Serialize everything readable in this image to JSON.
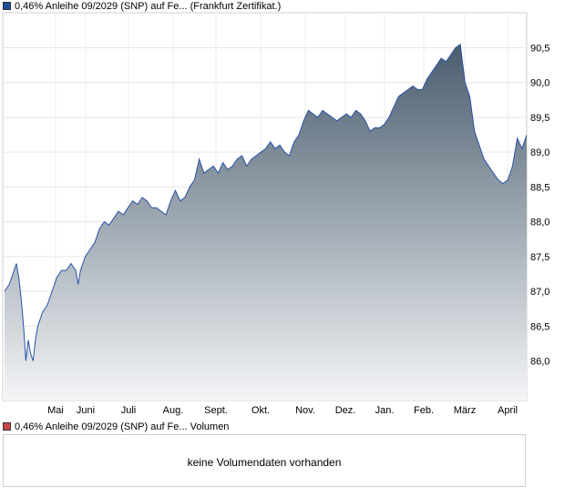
{
  "legend": {
    "price_label": "0,46% Anleihe 09/2029 (SNP) auf Fe... (Frankfurt Zertifikat.)",
    "price_color": "#1f4e9c",
    "volume_label": "0,46% Anleihe 09/2029 (SNP) auf Fe... Volumen",
    "volume_color": "#c8464a"
  },
  "volume_panel": {
    "message": "keine Volumendaten vorhanden"
  },
  "chart_data": {
    "type": "area",
    "title": "",
    "xlabel": "",
    "ylabel": "",
    "x_ticks": [
      "Mai",
      "Juni",
      "Juli",
      "Aug.",
      "Sept.",
      "Okt.",
      "Nov.",
      "Dez.",
      "Jan.",
      "Feb.",
      "März",
      "April"
    ],
    "y_ticks": [
      "86,0",
      "86,5",
      "87,0",
      "87,5",
      "88,0",
      "88,5",
      "89,0",
      "89,5",
      "90,0",
      "90,5"
    ],
    "ylim": [
      85.4,
      90.9
    ],
    "grid": true,
    "line_color": "#2a52a8",
    "fill_top_color": "#4a5d6e",
    "fill_bottom_color": "#f4f5f7",
    "series": [
      {
        "points": [
          [
            0,
            87.0
          ],
          [
            2,
            87.1
          ],
          [
            4,
            87.3
          ],
          [
            5,
            87.4
          ],
          [
            6,
            87.2
          ],
          [
            7,
            86.9
          ],
          [
            8,
            86.5
          ],
          [
            9,
            86.0
          ],
          [
            10,
            86.3
          ],
          [
            11,
            86.1
          ],
          [
            12,
            86.0
          ],
          [
            13,
            86.3
          ],
          [
            14,
            86.5
          ],
          [
            15,
            86.6
          ],
          [
            16,
            86.7
          ],
          [
            18,
            86.8
          ],
          [
            19,
            86.9
          ],
          [
            20,
            87.0
          ],
          [
            21,
            87.1
          ],
          [
            22,
            87.2
          ],
          [
            24,
            87.3
          ],
          [
            26,
            87.3
          ],
          [
            28,
            87.4
          ],
          [
            30,
            87.3
          ],
          [
            31,
            87.1
          ],
          [
            32,
            87.3
          ],
          [
            34,
            87.5
          ],
          [
            36,
            87.6
          ],
          [
            38,
            87.7
          ],
          [
            40,
            87.9
          ],
          [
            42,
            88.0
          ],
          [
            44,
            87.95
          ],
          [
            46,
            88.05
          ],
          [
            48,
            88.15
          ],
          [
            50,
            88.1
          ],
          [
            52,
            88.2
          ],
          [
            54,
            88.3
          ],
          [
            56,
            88.25
          ],
          [
            58,
            88.35
          ],
          [
            60,
            88.3
          ],
          [
            62,
            88.2
          ],
          [
            64,
            88.2
          ],
          [
            66,
            88.15
          ],
          [
            68,
            88.1
          ],
          [
            70,
            88.3
          ],
          [
            72,
            88.45
          ],
          [
            74,
            88.3
          ],
          [
            76,
            88.35
          ],
          [
            78,
            88.5
          ],
          [
            80,
            88.6
          ],
          [
            82,
            88.9
          ],
          [
            84,
            88.7
          ],
          [
            86,
            88.75
          ],
          [
            88,
            88.8
          ],
          [
            90,
            88.7
          ],
          [
            92,
            88.85
          ],
          [
            94,
            88.75
          ],
          [
            96,
            88.8
          ],
          [
            98,
            88.9
          ],
          [
            100,
            88.95
          ],
          [
            102,
            88.8
          ],
          [
            104,
            88.9
          ],
          [
            106,
            88.95
          ],
          [
            108,
            89.0
          ],
          [
            110,
            89.05
          ],
          [
            112,
            89.15
          ],
          [
            114,
            89.05
          ],
          [
            116,
            89.1
          ],
          [
            118,
            89.0
          ],
          [
            120,
            88.95
          ],
          [
            122,
            89.15
          ],
          [
            124,
            89.25
          ],
          [
            126,
            89.45
          ],
          [
            128,
            89.6
          ],
          [
            130,
            89.55
          ],
          [
            132,
            89.5
          ],
          [
            134,
            89.6
          ],
          [
            136,
            89.55
          ],
          [
            138,
            89.5
          ],
          [
            140,
            89.45
          ],
          [
            142,
            89.5
          ],
          [
            144,
            89.55
          ],
          [
            146,
            89.5
          ],
          [
            148,
            89.6
          ],
          [
            150,
            89.55
          ],
          [
            152,
            89.45
          ],
          [
            154,
            89.3
          ],
          [
            156,
            89.35
          ],
          [
            158,
            89.35
          ],
          [
            160,
            89.4
          ],
          [
            162,
            89.5
          ],
          [
            164,
            89.65
          ],
          [
            166,
            89.8
          ],
          [
            168,
            89.85
          ],
          [
            170,
            89.9
          ],
          [
            172,
            89.95
          ],
          [
            174,
            89.9
          ],
          [
            176,
            89.9
          ],
          [
            178,
            90.05
          ],
          [
            180,
            90.15
          ],
          [
            182,
            90.25
          ],
          [
            184,
            90.35
          ],
          [
            186,
            90.3
          ],
          [
            188,
            90.4
          ],
          [
            190,
            90.5
          ],
          [
            192,
            90.55
          ],
          [
            194,
            90.0
          ],
          [
            196,
            89.8
          ],
          [
            198,
            89.3
          ],
          [
            200,
            89.1
          ],
          [
            202,
            88.9
          ],
          [
            204,
            88.8
          ],
          [
            206,
            88.7
          ],
          [
            208,
            88.6
          ],
          [
            210,
            88.55
          ],
          [
            212,
            88.6
          ],
          [
            214,
            88.8
          ],
          [
            216,
            89.2
          ],
          [
            218,
            89.05
          ],
          [
            220,
            89.25
          ]
        ]
      }
    ]
  }
}
